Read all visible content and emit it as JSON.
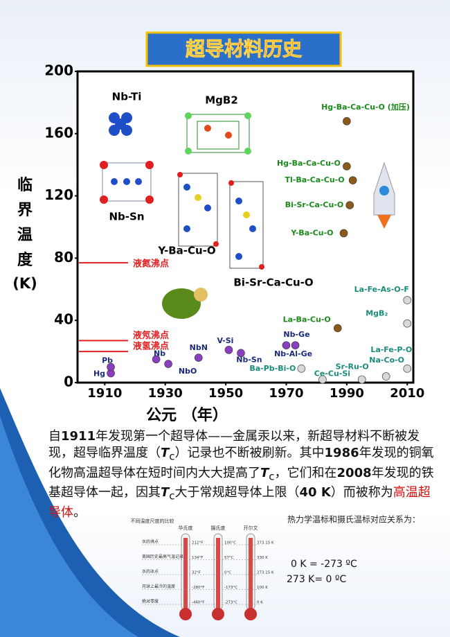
{
  "header": {
    "title": "超导材料历史"
  },
  "chart_data": {
    "type": "scatter",
    "xlabel": "公元 （年）",
    "ylabel": "临界温度",
    "ylabel_unit": "(K)",
    "xlim": [
      1901,
      2012
    ],
    "ylim": [
      0,
      200
    ],
    "xticks": [
      1910,
      1930,
      1950,
      1970,
      1990,
      2010
    ],
    "yticks": [
      0,
      40,
      80,
      120,
      160,
      200
    ],
    "points": [
      {
        "label": "Hg",
        "x": 1912,
        "y": 6,
        "color": "#8a3fc0",
        "label_color": "#1a2a7a"
      },
      {
        "label": "Pb",
        "x": 1912,
        "y": 10,
        "color": "#8a3fc0",
        "label_color": "#1a2a7a"
      },
      {
        "label": "Nb",
        "x": 1927,
        "y": 15,
        "color": "#8a3fc0",
        "label_color": "#1a2a7a"
      },
      {
        "label": "NbO",
        "x": 1931,
        "y": 12,
        "color": "#8a3fc0",
        "label_color": "#1a2a7a"
      },
      {
        "label": "NbN",
        "x": 1941,
        "y": 16,
        "color": "#8a3fc0",
        "label_color": "#1a2a7a"
      },
      {
        "label": "V-Si",
        "x": 1951,
        "y": 21,
        "color": "#8a3fc0",
        "label_color": "#1a2a7a"
      },
      {
        "label": "Nb-Sn",
        "x": 1955,
        "y": 19,
        "color": "#8a3fc0",
        "label_color": "#1a2a7a"
      },
      {
        "label": "Nb-Ge",
        "x": 1970,
        "y": 24,
        "color": "#8a3fc0",
        "label_color": "#1a2a7a"
      },
      {
        "label": "Nb-Al-Ge",
        "x": 1973,
        "y": 24,
        "color": "#8a3fc0",
        "label_color": "#1a2a7a"
      },
      {
        "label": "Ba-Pb-Bi-O",
        "x": 1975,
        "y": 9,
        "color": "#d8d8d8",
        "label_color": "#1a8a7a"
      },
      {
        "label": "Ce-Cu-Si",
        "x": 1982,
        "y": 2,
        "color": "#d8d8d8",
        "label_color": "#1a8a7a"
      },
      {
        "label": "La-Ba-Cu-O",
        "x": 1987,
        "y": 35,
        "color": "#8b5a1a",
        "label_color": "#1a8a1a"
      },
      {
        "label": "Y-Ba-Cu-O",
        "x": 1989,
        "y": 96,
        "color": "#8b5a1a",
        "label_color": "#1a8a1a"
      },
      {
        "label": "Bi-Sr-Ca-Cu-O",
        "x": 1991,
        "y": 114,
        "color": "#8b5a1a",
        "label_color": "#1a8a1a"
      },
      {
        "label": "Tl-Ba-Ca-Cu-O",
        "x": 1992,
        "y": 130,
        "color": "#8b5a1a",
        "label_color": "#1a8a1a"
      },
      {
        "label": "Hg-Ba-Ca-Cu-O",
        "x": 1990,
        "y": 139,
        "color": "#8b5a1a",
        "label_color": "#1a8a1a"
      },
      {
        "label": "Hg-Ba-Ca-Cu-O (加压)",
        "x": 1990,
        "y": 168,
        "color": "#8b5a1a",
        "label_color": "#1a8a1a"
      },
      {
        "label": "Sr-Ru-O",
        "x": 1995,
        "y": 2,
        "color": "#d8d8d8",
        "label_color": "#1a8a7a"
      },
      {
        "label": "Na-Co-O",
        "x": 2003,
        "y": 4,
        "color": "#d8d8d8",
        "label_color": "#1a8a7a"
      },
      {
        "label": "La-Fe-P-O",
        "x": 2010,
        "y": 9,
        "color": "#d8d8d8",
        "label_color": "#1a8a7a"
      },
      {
        "label": "MgB₂",
        "x": 2010,
        "y": 38,
        "color": "#d8d8d8",
        "label_color": "#1a8a7a"
      },
      {
        "label": "La-Fe-As-O-F",
        "x": 2010,
        "y": 53,
        "color": "#d8d8d8",
        "label_color": "#1a8a7a"
      }
    ],
    "reference_lines": [
      {
        "label": "液氮沸点",
        "value": 77
      },
      {
        "label": "液氖沸点",
        "value": 27
      },
      {
        "label": "液氢沸点",
        "value": 20
      }
    ],
    "line_color": "#e02020",
    "structures": [
      "Nb-Ti",
      "MgB2",
      "Nb-Sn",
      "Y-Ba-Cu-O",
      "Bi-Sr-Ca-Cu-O"
    ]
  },
  "paragraph": [
    "自",
    "1911",
    "年发现第一个超导体——金属汞以来，新超导材料不断被发现，超导临界温度（",
    "T",
    "c",
    "）记录也不断被刷新。其中",
    "1986",
    "年发现的铜氧化物高温超导体在短时间内大大提高了",
    "T",
    "c",
    "，它们和在",
    "2008",
    "年发现的铁基超导体一起，因其",
    "T",
    "c",
    "大于常规超导体上限（",
    "40 K",
    "）而被称为",
    "高温超导体",
    "。"
  ],
  "thermometer": {
    "title": "不同温度尺度的比较",
    "scales": [
      "华氏度",
      "摄氏度",
      "开尔文"
    ],
    "rows": [
      [
        "水的沸点",
        "212°F",
        "100°C",
        "373.15 K"
      ],
      [
        "美国历史最高气温记录",
        "134°F",
        "57°C",
        "330 K"
      ],
      [
        "水的冰点",
        "32°F",
        "0°C",
        "273.15 K"
      ],
      [
        "月球上最冷的温度",
        "-280°F",
        "-173°C",
        "100 K"
      ],
      [
        "绝对零度",
        "-460°F",
        "-273°C",
        "0 K"
      ]
    ]
  },
  "relation": {
    "title": "热力学温标和摄氏温标对应关系为：",
    "lines": [
      "0 K = -273 ºC",
      "273 K= 0 ºC"
    ]
  }
}
